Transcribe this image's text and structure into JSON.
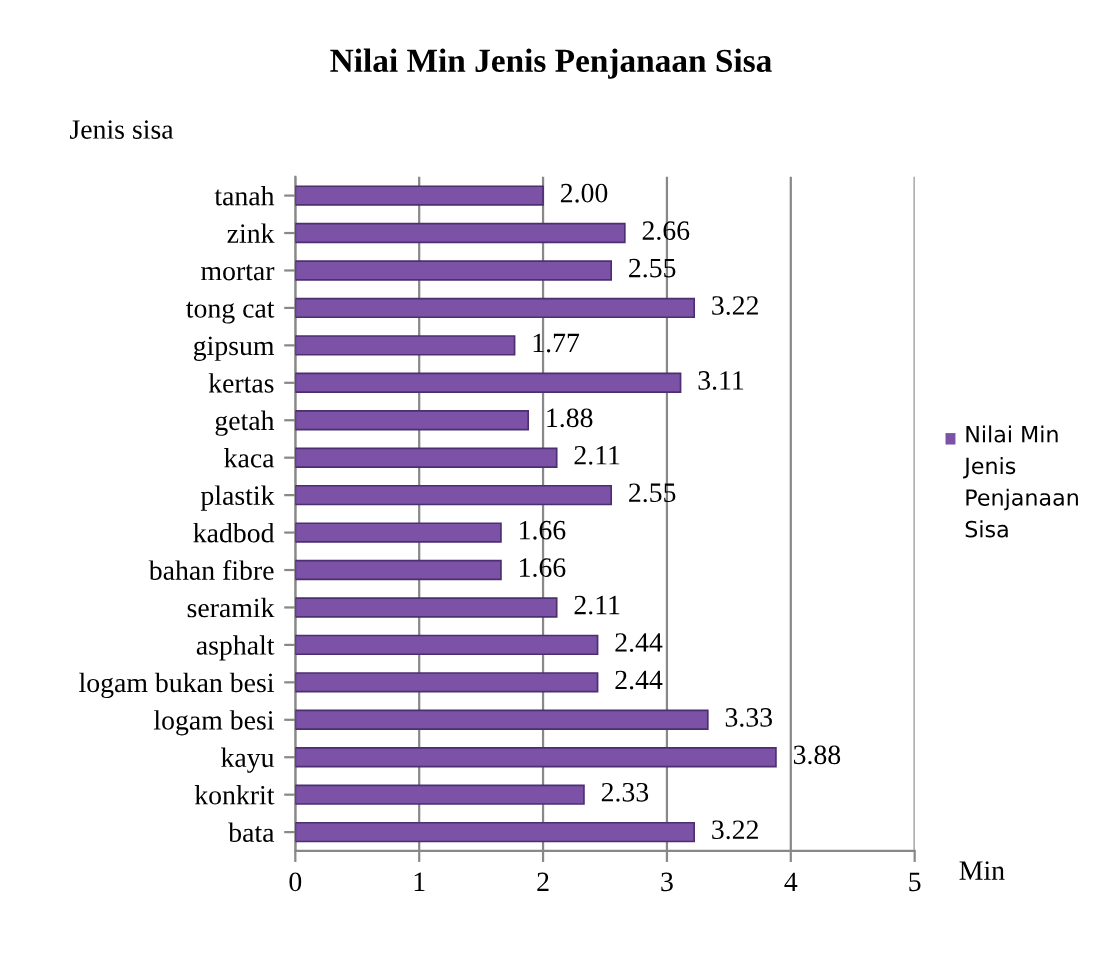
{
  "chart_data": {
    "type": "bar",
    "orientation": "horizontal",
    "title": "Nilai Min Jenis Penjanaan Sisa",
    "ylabel": "Jenis sisa",
    "xlabel": "Min",
    "categories": [
      "tanah",
      "zink",
      "mortar",
      "tong cat",
      "gipsum",
      "kertas",
      "getah",
      "kaca",
      "plastik",
      "kadbod",
      "bahan fibre",
      "seramik",
      "asphalt",
      "logam bukan besi",
      "logam besi",
      "kayu",
      "konkrit",
      "bata"
    ],
    "series": [
      {
        "name": "Nilai Min Jenis Penjanaan Sisa",
        "color": "#7b52a6",
        "values": [
          2.0,
          2.66,
          2.55,
          3.22,
          1.77,
          3.11,
          1.88,
          2.11,
          2.55,
          1.66,
          1.66,
          2.11,
          2.44,
          2.44,
          3.33,
          3.88,
          2.33,
          3.22
        ],
        "value_labels": [
          "2.00",
          "2.66",
          "2.55",
          "3.22",
          "1.77",
          "3.11",
          "1.88",
          "2.11",
          "2.55",
          "1.66",
          "1.66",
          "2.11",
          "2.44",
          "2.44",
          "3.33",
          "3.88",
          "2.33",
          "3.22"
        ]
      }
    ],
    "xlim": [
      0,
      5
    ],
    "xticks": [
      0,
      1,
      2,
      3,
      4,
      5
    ],
    "grid": "x",
    "legend": "right"
  }
}
